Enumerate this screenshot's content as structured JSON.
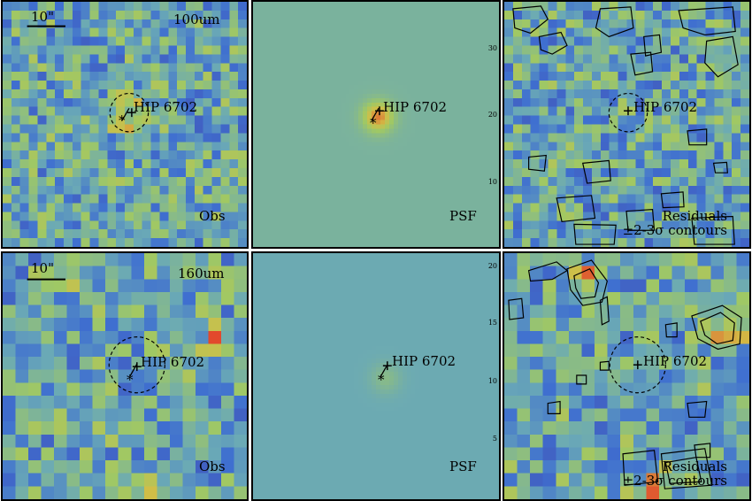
{
  "rows": [
    {
      "band": "100um",
      "scale_bar": "10\"",
      "panels": [
        {
          "id": "obs",
          "corner_label": "Obs",
          "target": "HIP 6702"
        },
        {
          "id": "psf",
          "corner_label": "PSF",
          "target": "HIP 6702",
          "y_ticks": [
            "30",
            "20",
            "10"
          ]
        },
        {
          "id": "res",
          "corner_label": "Residuals",
          "corner_label2": "±2-3σ contours",
          "target": "HIP 6702"
        }
      ]
    },
    {
      "band": "160um",
      "scale_bar": "10\"",
      "panels": [
        {
          "id": "obs",
          "corner_label": "Obs",
          "target": "HIP 6702"
        },
        {
          "id": "psf",
          "corner_label": "PSF",
          "target": "HIP 6702",
          "y_ticks": [
            "20",
            "15",
            "10",
            "5"
          ]
        },
        {
          "id": "res",
          "corner_label": "Residuals",
          "corner_label2": "±2-3σ contours",
          "target": "HIP 6702"
        }
      ]
    }
  ],
  "colors": {
    "low": "#4b2a8f",
    "mid_low": "#3f6fd0",
    "mid": "#6aa9b6",
    "mid_high": "#c7c74a",
    "high": "#e3452b",
    "psf_bg_top": "#78b48e",
    "psf_bg_bottom": "#5a9fbd",
    "contour": "#000000"
  }
}
